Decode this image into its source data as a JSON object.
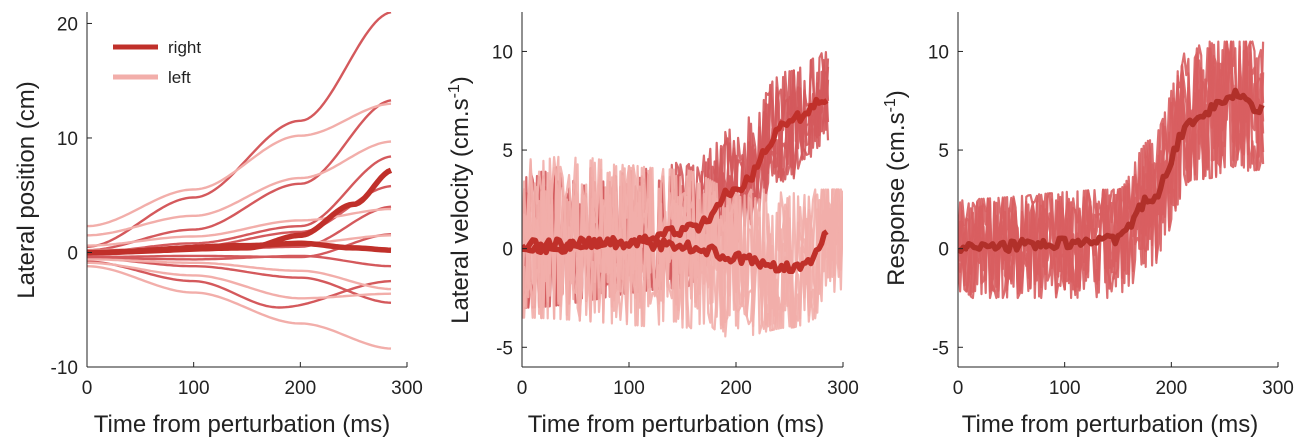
{
  "colors": {
    "right": "#c0302a",
    "right_trace": "#d4595c",
    "left": "#f2aeaa",
    "response": "#d85e60",
    "response_mean": "#b1302a"
  },
  "chart_data": [
    {
      "type": "line",
      "xlabel": "Time from perturbation (ms)",
      "ylabel": "Lateral position (cm)",
      "xlim": [
        0,
        300
      ],
      "ylim": [
        -10,
        21
      ],
      "xticks": [
        0,
        100,
        200,
        300
      ],
      "yticks": [
        -10,
        0,
        10,
        20
      ],
      "legend": {
        "placement": "top-left",
        "entries": [
          {
            "label": "right",
            "color_key": "right"
          },
          {
            "label": "left",
            "color_key": "left"
          }
        ]
      },
      "series": [
        {
          "name": "right",
          "role": "mean",
          "x": [
            0,
            150,
            200,
            250,
            287
          ],
          "y": [
            0,
            0.4,
            1.5,
            4.2,
            7.2
          ]
        },
        {
          "name": "left",
          "role": "mean",
          "x": [
            0,
            150,
            200,
            250,
            287
          ],
          "y": [
            0,
            0.6,
            0.8,
            0.4,
            0.2
          ]
        },
        {
          "role": "trial",
          "group": "right",
          "x": [
            0,
            100,
            200,
            287
          ],
          "y": [
            0.5,
            4.8,
            11.5,
            21
          ]
        },
        {
          "role": "trial",
          "group": "right",
          "x": [
            0,
            100,
            200,
            287
          ],
          "y": [
            0.2,
            2.0,
            6.0,
            13.3
          ]
        },
        {
          "role": "trial",
          "group": "right",
          "x": [
            0,
            100,
            200,
            287
          ],
          "y": [
            0,
            0.8,
            2.3,
            8.4
          ]
        },
        {
          "role": "trial",
          "group": "right",
          "x": [
            0,
            100,
            200,
            287
          ],
          "y": [
            0,
            0.5,
            1.8,
            5.8
          ]
        },
        {
          "role": "trial",
          "group": "right",
          "x": [
            0,
            100,
            200,
            287
          ],
          "y": [
            -0.2,
            0.2,
            0.5,
            4.0
          ]
        },
        {
          "role": "trial",
          "group": "right",
          "x": [
            0,
            100,
            200,
            287
          ],
          "y": [
            -0.4,
            -0.3,
            -0.4,
            1.6
          ]
        },
        {
          "role": "trial",
          "group": "right",
          "x": [
            0,
            100,
            200,
            287
          ],
          "y": [
            -0.5,
            -0.6,
            -0.3,
            -1.2
          ]
        },
        {
          "role": "trial",
          "group": "right",
          "x": [
            0,
            100,
            180,
            287
          ],
          "y": [
            -0.8,
            -2.5,
            -4.8,
            -2.5
          ]
        },
        {
          "role": "trial",
          "group": "right",
          "x": [
            0,
            100,
            200,
            287
          ],
          "y": [
            -0.5,
            -1.2,
            -2.2,
            -4.4
          ]
        },
        {
          "role": "trial",
          "group": "left",
          "x": [
            0,
            100,
            200,
            287
          ],
          "y": [
            2.3,
            5.5,
            10.2,
            13.0
          ]
        },
        {
          "role": "trial",
          "group": "left",
          "x": [
            0,
            100,
            200,
            287
          ],
          "y": [
            1.5,
            3.2,
            6.5,
            9.7
          ]
        },
        {
          "role": "trial",
          "group": "left",
          "x": [
            0,
            100,
            200,
            287
          ],
          "y": [
            0.6,
            1.4,
            2.8,
            3.8
          ]
        },
        {
          "role": "trial",
          "group": "left",
          "x": [
            0,
            100,
            200,
            287
          ],
          "y": [
            0.2,
            0.4,
            0.8,
            1.5
          ]
        },
        {
          "role": "trial",
          "group": "left",
          "x": [
            0,
            100,
            200,
            287
          ],
          "y": [
            -0.6,
            -0.9,
            -1.6,
            -3.2
          ]
        },
        {
          "role": "trial",
          "group": "left",
          "x": [
            0,
            100,
            200,
            287
          ],
          "y": [
            -0.9,
            -2.0,
            -4.0,
            -3.6
          ]
        },
        {
          "role": "trial",
          "group": "left",
          "x": [
            0,
            100,
            200,
            287
          ],
          "y": [
            -1.2,
            -3.5,
            -6.2,
            -8.4
          ]
        }
      ]
    },
    {
      "type": "line",
      "xlabel": "Time from perturbation (ms)",
      "ylabel": "Lateral velocity (cm.s",
      "ylabel_sup": "-1",
      "ylabel_end": ")",
      "xlim": [
        0,
        300
      ],
      "ylim": [
        -6,
        12
      ],
      "xticks": [
        0,
        100,
        200,
        300
      ],
      "yticks": [
        -5,
        0,
        5,
        10
      ],
      "series": [
        {
          "name": "right",
          "role": "mean",
          "x": [
            0,
            100,
            160,
            200,
            250,
            287
          ],
          "y": [
            0,
            0.3,
            1.0,
            3.0,
            6.5,
            7.7
          ]
        },
        {
          "name": "left",
          "role": "mean",
          "x": [
            0,
            100,
            160,
            200,
            240,
            265,
            287
          ],
          "y": [
            0.2,
            0.3,
            0.1,
            -0.5,
            -1.0,
            -0.8,
            0.8
          ]
        },
        {
          "role": "band",
          "group": "right",
          "x": [
            0,
            150,
            190,
            250,
            287
          ],
          "lower": [
            -3,
            -2,
            0,
            3.5,
            5.5
          ],
          "upper": [
            4.5,
            4.5,
            6,
            9,
            10
          ]
        },
        {
          "role": "band",
          "group": "left",
          "x": [
            0,
            150,
            200,
            250,
            300
          ],
          "lower": [
            -3.5,
            -4,
            -4.5,
            -4,
            -3
          ],
          "upper": [
            5,
            4,
            3,
            3,
            3
          ]
        }
      ]
    },
    {
      "type": "line",
      "xlabel": "Time from perturbation (ms)",
      "ylabel": "Response (cm.s",
      "ylabel_sup": "-1",
      "ylabel_end": ")",
      "xlim": [
        0,
        300
      ],
      "ylim": [
        -6,
        12
      ],
      "xticks": [
        0,
        100,
        200,
        300
      ],
      "yticks": [
        -5,
        0,
        5,
        10
      ],
      "series": [
        {
          "role": "mean",
          "x": [
            0,
            100,
            150,
            180,
            220,
            260,
            287
          ],
          "y": [
            0,
            0.3,
            0.5,
            2.5,
            6.5,
            7.8,
            7.0
          ]
        },
        {
          "role": "band",
          "x": [
            0,
            150,
            180,
            220,
            287
          ],
          "lower": [
            -2.5,
            -2.5,
            -1,
            3.5,
            4
          ],
          "upper": [
            2.5,
            3,
            5.5,
            10.5,
            10.5
          ]
        }
      ]
    }
  ]
}
